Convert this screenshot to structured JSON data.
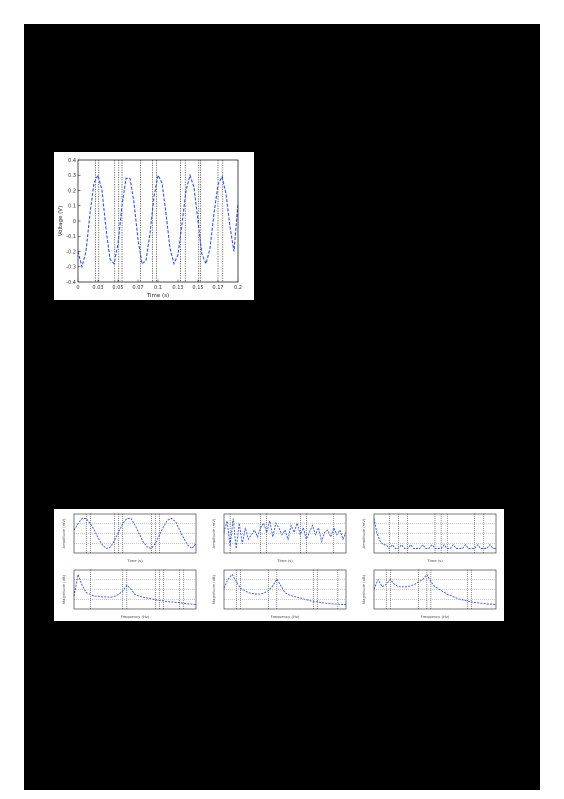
{
  "figure1": {
    "chart_data": {
      "type": "line",
      "xlabel": "Time (s)",
      "ylabel": "Voltage (V)",
      "xlim": [
        0,
        0.2
      ],
      "ylim": [
        -0.4,
        0.4
      ],
      "x_ticks": [
        "0",
        "0.03",
        "0.05",
        "0.07",
        "0.1",
        "0.13",
        "0.15",
        "0.17",
        "0.2"
      ],
      "y_ticks": [
        "-0.4",
        "-0.3",
        "-0.2",
        "-0.1",
        "0",
        "0.1",
        "0.2",
        "0.3",
        "0.4"
      ],
      "series": [
        {
          "style": "dashed",
          "color": "#3355dd",
          "x": [
            0.0,
            0.005,
            0.01,
            0.015,
            0.02,
            0.025,
            0.03,
            0.035,
            0.04,
            0.045,
            0.05,
            0.055,
            0.06,
            0.065,
            0.07,
            0.075,
            0.08,
            0.085,
            0.09,
            0.095,
            0.1,
            0.105,
            0.11,
            0.115,
            0.12,
            0.125,
            0.13,
            0.135,
            0.14,
            0.145,
            0.15,
            0.155,
            0.16,
            0.165,
            0.17,
            0.175,
            0.18,
            0.185,
            0.19,
            0.195,
            0.2
          ],
          "y": [
            -0.2,
            -0.3,
            -0.2,
            0.05,
            0.25,
            0.3,
            0.2,
            -0.05,
            -0.25,
            -0.28,
            -0.15,
            0.1,
            0.28,
            0.28,
            0.12,
            -0.12,
            -0.28,
            -0.26,
            -0.08,
            0.16,
            0.3,
            0.25,
            0.05,
            -0.18,
            -0.28,
            -0.22,
            -0.02,
            0.2,
            0.3,
            0.22,
            0.0,
            -0.22,
            -0.28,
            -0.18,
            0.05,
            0.24,
            0.29,
            0.18,
            -0.04,
            -0.2,
            0.12
          ]
        }
      ],
      "vlines": [
        0.022,
        0.026,
        0.046,
        0.051,
        0.055,
        0.078,
        0.093,
        0.098,
        0.128,
        0.134,
        0.151,
        0.153,
        0.175,
        0.181
      ]
    }
  },
  "figure2": {
    "chart_data": [
      {
        "type": "line",
        "xlabel": "Time (s)",
        "ylabel": "Amplitude (mV)",
        "x": [
          0,
          1,
          2,
          3,
          4,
          5,
          6,
          7,
          8,
          9,
          10,
          11,
          12,
          13,
          14,
          15,
          16,
          17,
          18,
          19,
          20,
          21,
          22,
          23,
          24,
          25,
          26,
          27,
          28,
          29,
          30
        ],
        "y": [
          0.2,
          0.6,
          0.9,
          0.9,
          0.6,
          0.2,
          -0.3,
          -0.7,
          -0.9,
          -0.8,
          -0.4,
          0.1,
          0.6,
          0.9,
          0.9,
          0.5,
          0.0,
          -0.5,
          -0.8,
          -0.9,
          -0.6,
          -0.1,
          0.4,
          0.8,
          0.9,
          0.7,
          0.2,
          -0.3,
          -0.7,
          -0.9,
          -0.6
        ],
        "vlines": [
          3,
          4,
          10,
          11,
          12,
          19,
          20,
          21
        ]
      },
      {
        "type": "line",
        "xlabel": "Time (s)",
        "ylabel": "Amplitude (mV)",
        "x": [
          0,
          1,
          2,
          3,
          4,
          5,
          6,
          7,
          8,
          9,
          10,
          11,
          12,
          13,
          14,
          15,
          16,
          17,
          18,
          19,
          20,
          21,
          22,
          23,
          24,
          25,
          26,
          27,
          28,
          29,
          30,
          31,
          32,
          33,
          34,
          35,
          36,
          37,
          38,
          39,
          40
        ],
        "y": [
          0.1,
          0.6,
          -0.5,
          0.7,
          -0.6,
          0.5,
          -0.4,
          0.3,
          -0.2,
          0.0,
          0.2,
          -0.1,
          0.3,
          0.5,
          0.1,
          0.6,
          -0.1,
          0.5,
          0.3,
          0.0,
          0.2,
          -0.2,
          0.4,
          0.1,
          0.5,
          0.0,
          0.3,
          -0.2,
          0.1,
          0.4,
          0.0,
          0.3,
          -0.3,
          0.1,
          0.2,
          -0.1,
          0.3,
          0.0,
          0.2,
          -0.2,
          0.1
        ],
        "vlines": [
          2,
          12,
          14,
          25,
          27,
          36
        ]
      },
      {
        "type": "line",
        "xlabel": "Time (s)",
        "ylabel": "Amplitude (mV)",
        "x": [
          0,
          1,
          2,
          3,
          4,
          5,
          6,
          7,
          8,
          9,
          10,
          11,
          12,
          13,
          14,
          15,
          16,
          17,
          18,
          19,
          20,
          21,
          22,
          23,
          24,
          25,
          26,
          27,
          28,
          29,
          30,
          31,
          32,
          33,
          34,
          35,
          36,
          37,
          38,
          39,
          40
        ],
        "y": [
          0.9,
          0.5,
          0.3,
          0.2,
          0.2,
          0.1,
          0.2,
          0.1,
          0.1,
          0.2,
          0.1,
          0.1,
          0.2,
          0.1,
          0.1,
          0.1,
          0.2,
          0.1,
          0.1,
          0.2,
          0.1,
          0.1,
          0.1,
          0.2,
          0.1,
          0.1,
          0.2,
          0.1,
          0.1,
          0.1,
          0.2,
          0.1,
          0.1,
          0.1,
          0.2,
          0.1,
          0.1,
          0.1,
          0.2,
          0.1,
          0.1
        ],
        "vlines": [
          5,
          8,
          11,
          20,
          22,
          24,
          33,
          36
        ]
      },
      {
        "type": "line",
        "xlabel": "Frequency (Hz)",
        "ylabel": "Magnitude (dB)",
        "x": [
          0,
          1,
          2,
          3,
          4,
          5,
          6,
          7,
          8,
          9,
          10,
          11,
          12,
          13,
          14,
          15,
          16,
          17,
          18,
          19,
          20,
          21,
          22,
          23,
          24,
          25,
          26,
          27,
          28,
          29,
          30
        ],
        "y": [
          0.3,
          0.9,
          0.6,
          0.4,
          0.35,
          0.3,
          0.3,
          0.28,
          0.28,
          0.27,
          0.3,
          0.35,
          0.45,
          0.6,
          0.5,
          0.35,
          0.3,
          0.27,
          0.25,
          0.23,
          0.2,
          0.18,
          0.17,
          0.15,
          0.14,
          0.13,
          0.12,
          0.1,
          0.09,
          0.08,
          0.07
        ],
        "vlines": [
          4,
          12,
          13,
          20,
          21,
          22,
          26,
          27
        ]
      },
      {
        "type": "line",
        "xlabel": "Frequency (Hz)",
        "ylabel": "Magnitude (dB)",
        "x": [
          0,
          1,
          2,
          3,
          4,
          5,
          6,
          7,
          8,
          9,
          10,
          11,
          12,
          13,
          14,
          15,
          16,
          17,
          18,
          19,
          20,
          21,
          22,
          23,
          24,
          25,
          26,
          27,
          28,
          29,
          30
        ],
        "y": [
          0.6,
          0.8,
          0.9,
          0.75,
          0.6,
          0.55,
          0.5,
          0.48,
          0.47,
          0.47,
          0.5,
          0.55,
          0.65,
          0.8,
          0.65,
          0.5,
          0.45,
          0.42,
          0.4,
          0.38,
          0.35,
          0.33,
          0.3,
          0.3,
          0.28,
          0.27,
          0.26,
          0.25,
          0.25,
          0.24,
          0.24
        ],
        "vlines": [
          3,
          4,
          11,
          13,
          22,
          23,
          28
        ]
      },
      {
        "type": "line",
        "xlabel": "Frequency (Hz)",
        "ylabel": "Magnitude (dB)",
        "x": [
          0,
          1,
          2,
          3,
          4,
          5,
          6,
          7,
          8,
          9,
          10,
          11,
          12,
          13,
          14,
          15,
          16,
          17,
          18,
          19,
          20,
          21,
          22,
          23,
          24,
          25,
          26,
          27,
          28,
          29,
          30
        ],
        "y": [
          0.5,
          0.7,
          0.55,
          0.6,
          0.7,
          0.6,
          0.55,
          0.55,
          0.55,
          0.57,
          0.6,
          0.65,
          0.7,
          0.8,
          0.65,
          0.55,
          0.5,
          0.45,
          0.4,
          0.37,
          0.33,
          0.3,
          0.28,
          0.26,
          0.24,
          0.23,
          0.22,
          0.21,
          0.2,
          0.2,
          0.19
        ],
        "vlines": [
          3,
          4,
          11,
          13,
          14,
          23,
          24
        ]
      }
    ]
  }
}
